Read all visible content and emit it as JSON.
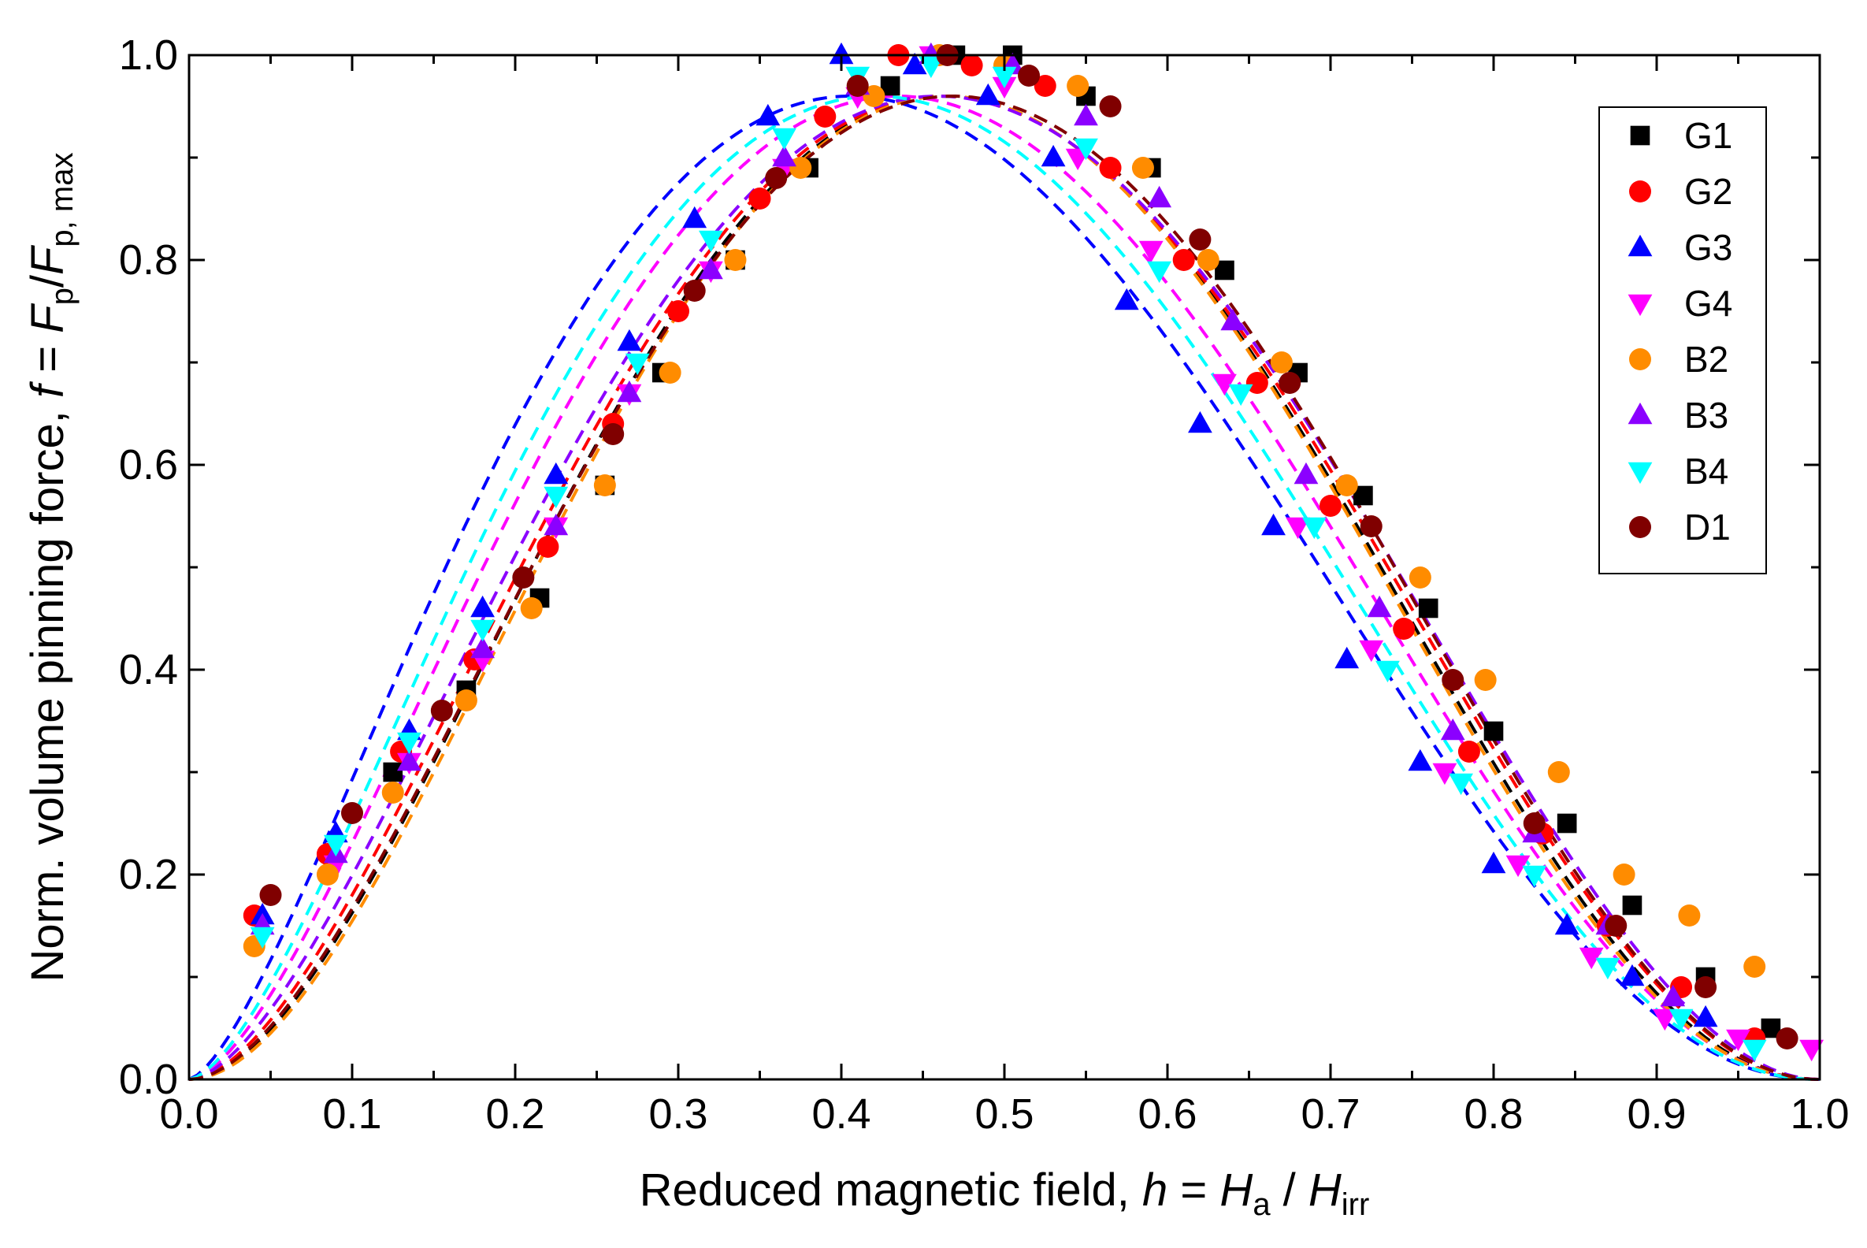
{
  "chart_data": {
    "type": "scatter",
    "title": "",
    "xlabel": "Reduced magnetic field, h = Ha / Hirr",
    "ylabel": "Norm. volume pinning force, f = Fp/Fp, max",
    "xlabel_parts": {
      "prefix": "Reduced magnetic field, ",
      "var": "h",
      "eq": " = ",
      "main1": "H",
      "sub1": "a",
      "slash": " / ",
      "main2": "H",
      "sub2": "irr"
    },
    "ylabel_parts": {
      "prefix": "Norm. volume pinning force, ",
      "var": "f",
      "eq": " = ",
      "main1": "F",
      "sub1": "p",
      "slash": "/",
      "main2": "F",
      "sub2": "p, max"
    },
    "xlim": [
      0.0,
      1.0
    ],
    "ylim": [
      0.0,
      1.0
    ],
    "xticks": [
      "0.0",
      "0.1",
      "0.2",
      "0.3",
      "0.4",
      "0.5",
      "0.6",
      "0.7",
      "0.8",
      "0.9",
      "1.0"
    ],
    "yticks": [
      "0.0",
      "0.2",
      "0.4",
      "0.6",
      "0.8",
      "1.0"
    ],
    "legend_position": "top-right",
    "series": [
      {
        "name": "G1",
        "marker": "square",
        "color": "#000000",
        "fit": {
          "p": 1.9,
          "q": 2.2
        },
        "x": [
          0.125,
          0.17,
          0.215,
          0.255,
          0.29,
          0.335,
          0.38,
          0.43,
          0.47,
          0.505,
          0.55,
          0.59,
          0.635,
          0.68,
          0.72,
          0.76,
          0.8,
          0.845,
          0.885,
          0.93,
          0.97
        ],
        "y": [
          0.3,
          0.38,
          0.47,
          0.58,
          0.69,
          0.8,
          0.89,
          0.97,
          1.0,
          1.0,
          0.96,
          0.89,
          0.79,
          0.69,
          0.57,
          0.46,
          0.34,
          0.25,
          0.17,
          0.1,
          0.05
        ]
      },
      {
        "name": "G2",
        "marker": "circle",
        "color": "#ff0000",
        "fit": {
          "p": 1.8,
          "q": 2.1
        },
        "x": [
          0.04,
          0.085,
          0.13,
          0.175,
          0.22,
          0.26,
          0.3,
          0.35,
          0.39,
          0.435,
          0.48,
          0.525,
          0.565,
          0.61,
          0.655,
          0.7,
          0.745,
          0.785,
          0.83,
          0.87,
          0.915,
          0.96
        ],
        "y": [
          0.16,
          0.22,
          0.32,
          0.41,
          0.52,
          0.64,
          0.75,
          0.86,
          0.94,
          1.0,
          0.99,
          0.97,
          0.89,
          0.8,
          0.68,
          0.56,
          0.44,
          0.32,
          0.24,
          0.15,
          0.09,
          0.04
        ]
      },
      {
        "name": "G3",
        "marker": "triangle-up",
        "color": "#0000ff",
        "fit": {
          "p": 1.5,
          "q": 2.2
        },
        "x": [
          0.045,
          0.09,
          0.135,
          0.18,
          0.225,
          0.27,
          0.31,
          0.355,
          0.4,
          0.445,
          0.49,
          0.53,
          0.575,
          0.62,
          0.665,
          0.71,
          0.755,
          0.8,
          0.845,
          0.885,
          0.93
        ],
        "y": [
          0.16,
          0.24,
          0.34,
          0.46,
          0.59,
          0.72,
          0.84,
          0.94,
          1.0,
          0.99,
          0.96,
          0.9,
          0.76,
          0.64,
          0.54,
          0.41,
          0.31,
          0.21,
          0.15,
          0.1,
          0.06
        ]
      },
      {
        "name": "G4",
        "marker": "triangle-down",
        "color": "#ff00ff",
        "fit": {
          "p": 1.65,
          "q": 2.15
        },
        "x": [
          0.09,
          0.135,
          0.18,
          0.225,
          0.27,
          0.32,
          0.365,
          0.41,
          0.455,
          0.5,
          0.545,
          0.59,
          0.635,
          0.68,
          0.725,
          0.77,
          0.815,
          0.86,
          0.905,
          0.95,
          0.995
        ],
        "y": [
          0.21,
          0.31,
          0.41,
          0.54,
          0.67,
          0.79,
          0.89,
          0.96,
          1.0,
          0.97,
          0.9,
          0.81,
          0.68,
          0.54,
          0.42,
          0.3,
          0.21,
          0.12,
          0.06,
          0.04,
          0.03
        ]
      },
      {
        "name": "B2",
        "marker": "circle",
        "color": "#ff8c00",
        "fit": {
          "p": 1.95,
          "q": 2.25
        },
        "x": [
          0.04,
          0.085,
          0.125,
          0.17,
          0.21,
          0.255,
          0.295,
          0.335,
          0.375,
          0.42,
          0.46,
          0.5,
          0.545,
          0.585,
          0.625,
          0.67,
          0.71,
          0.755,
          0.795,
          0.84,
          0.88,
          0.92,
          0.96
        ],
        "y": [
          0.13,
          0.2,
          0.28,
          0.37,
          0.46,
          0.58,
          0.69,
          0.8,
          0.89,
          0.96,
          1.0,
          0.99,
          0.97,
          0.89,
          0.8,
          0.7,
          0.58,
          0.49,
          0.39,
          0.3,
          0.2,
          0.16,
          0.11
        ]
      },
      {
        "name": "B3",
        "marker": "triangle-up",
        "color": "#8b00ff",
        "fit": {
          "p": 1.7,
          "q": 2.0
        },
        "x": [
          0.045,
          0.09,
          0.135,
          0.18,
          0.225,
          0.27,
          0.32,
          0.365,
          0.41,
          0.455,
          0.505,
          0.55,
          0.595,
          0.64,
          0.685,
          0.73,
          0.775,
          0.825,
          0.87,
          0.91
        ],
        "y": [
          0.15,
          0.22,
          0.31,
          0.42,
          0.54,
          0.67,
          0.79,
          0.9,
          0.97,
          1.0,
          0.99,
          0.94,
          0.86,
          0.74,
          0.59,
          0.46,
          0.34,
          0.24,
          0.15,
          0.08
        ]
      },
      {
        "name": "B4",
        "marker": "triangle-down",
        "color": "#00ffff",
        "fit": {
          "p": 1.6,
          "q": 2.2
        },
        "x": [
          0.045,
          0.09,
          0.135,
          0.18,
          0.225,
          0.275,
          0.32,
          0.365,
          0.41,
          0.455,
          0.5,
          0.55,
          0.595,
          0.645,
          0.69,
          0.735,
          0.78,
          0.825,
          0.87,
          0.915,
          0.96
        ],
        "y": [
          0.14,
          0.23,
          0.33,
          0.44,
          0.57,
          0.7,
          0.82,
          0.92,
          0.98,
          0.99,
          0.98,
          0.91,
          0.79,
          0.67,
          0.54,
          0.4,
          0.29,
          0.2,
          0.11,
          0.06,
          0.03
        ]
      },
      {
        "name": "D1",
        "marker": "circle",
        "color": "#800000",
        "fit": {
          "p": 1.85,
          "q": 2.1
        },
        "x": [
          0.05,
          0.1,
          0.155,
          0.205,
          0.26,
          0.31,
          0.36,
          0.41,
          0.465,
          0.515,
          0.565,
          0.62,
          0.675,
          0.725,
          0.775,
          0.825,
          0.875,
          0.93,
          0.98
        ],
        "y": [
          0.18,
          0.26,
          0.36,
          0.49,
          0.63,
          0.77,
          0.88,
          0.97,
          1.0,
          0.98,
          0.95,
          0.82,
          0.68,
          0.54,
          0.39,
          0.25,
          0.15,
          0.09,
          0.04
        ]
      }
    ]
  }
}
